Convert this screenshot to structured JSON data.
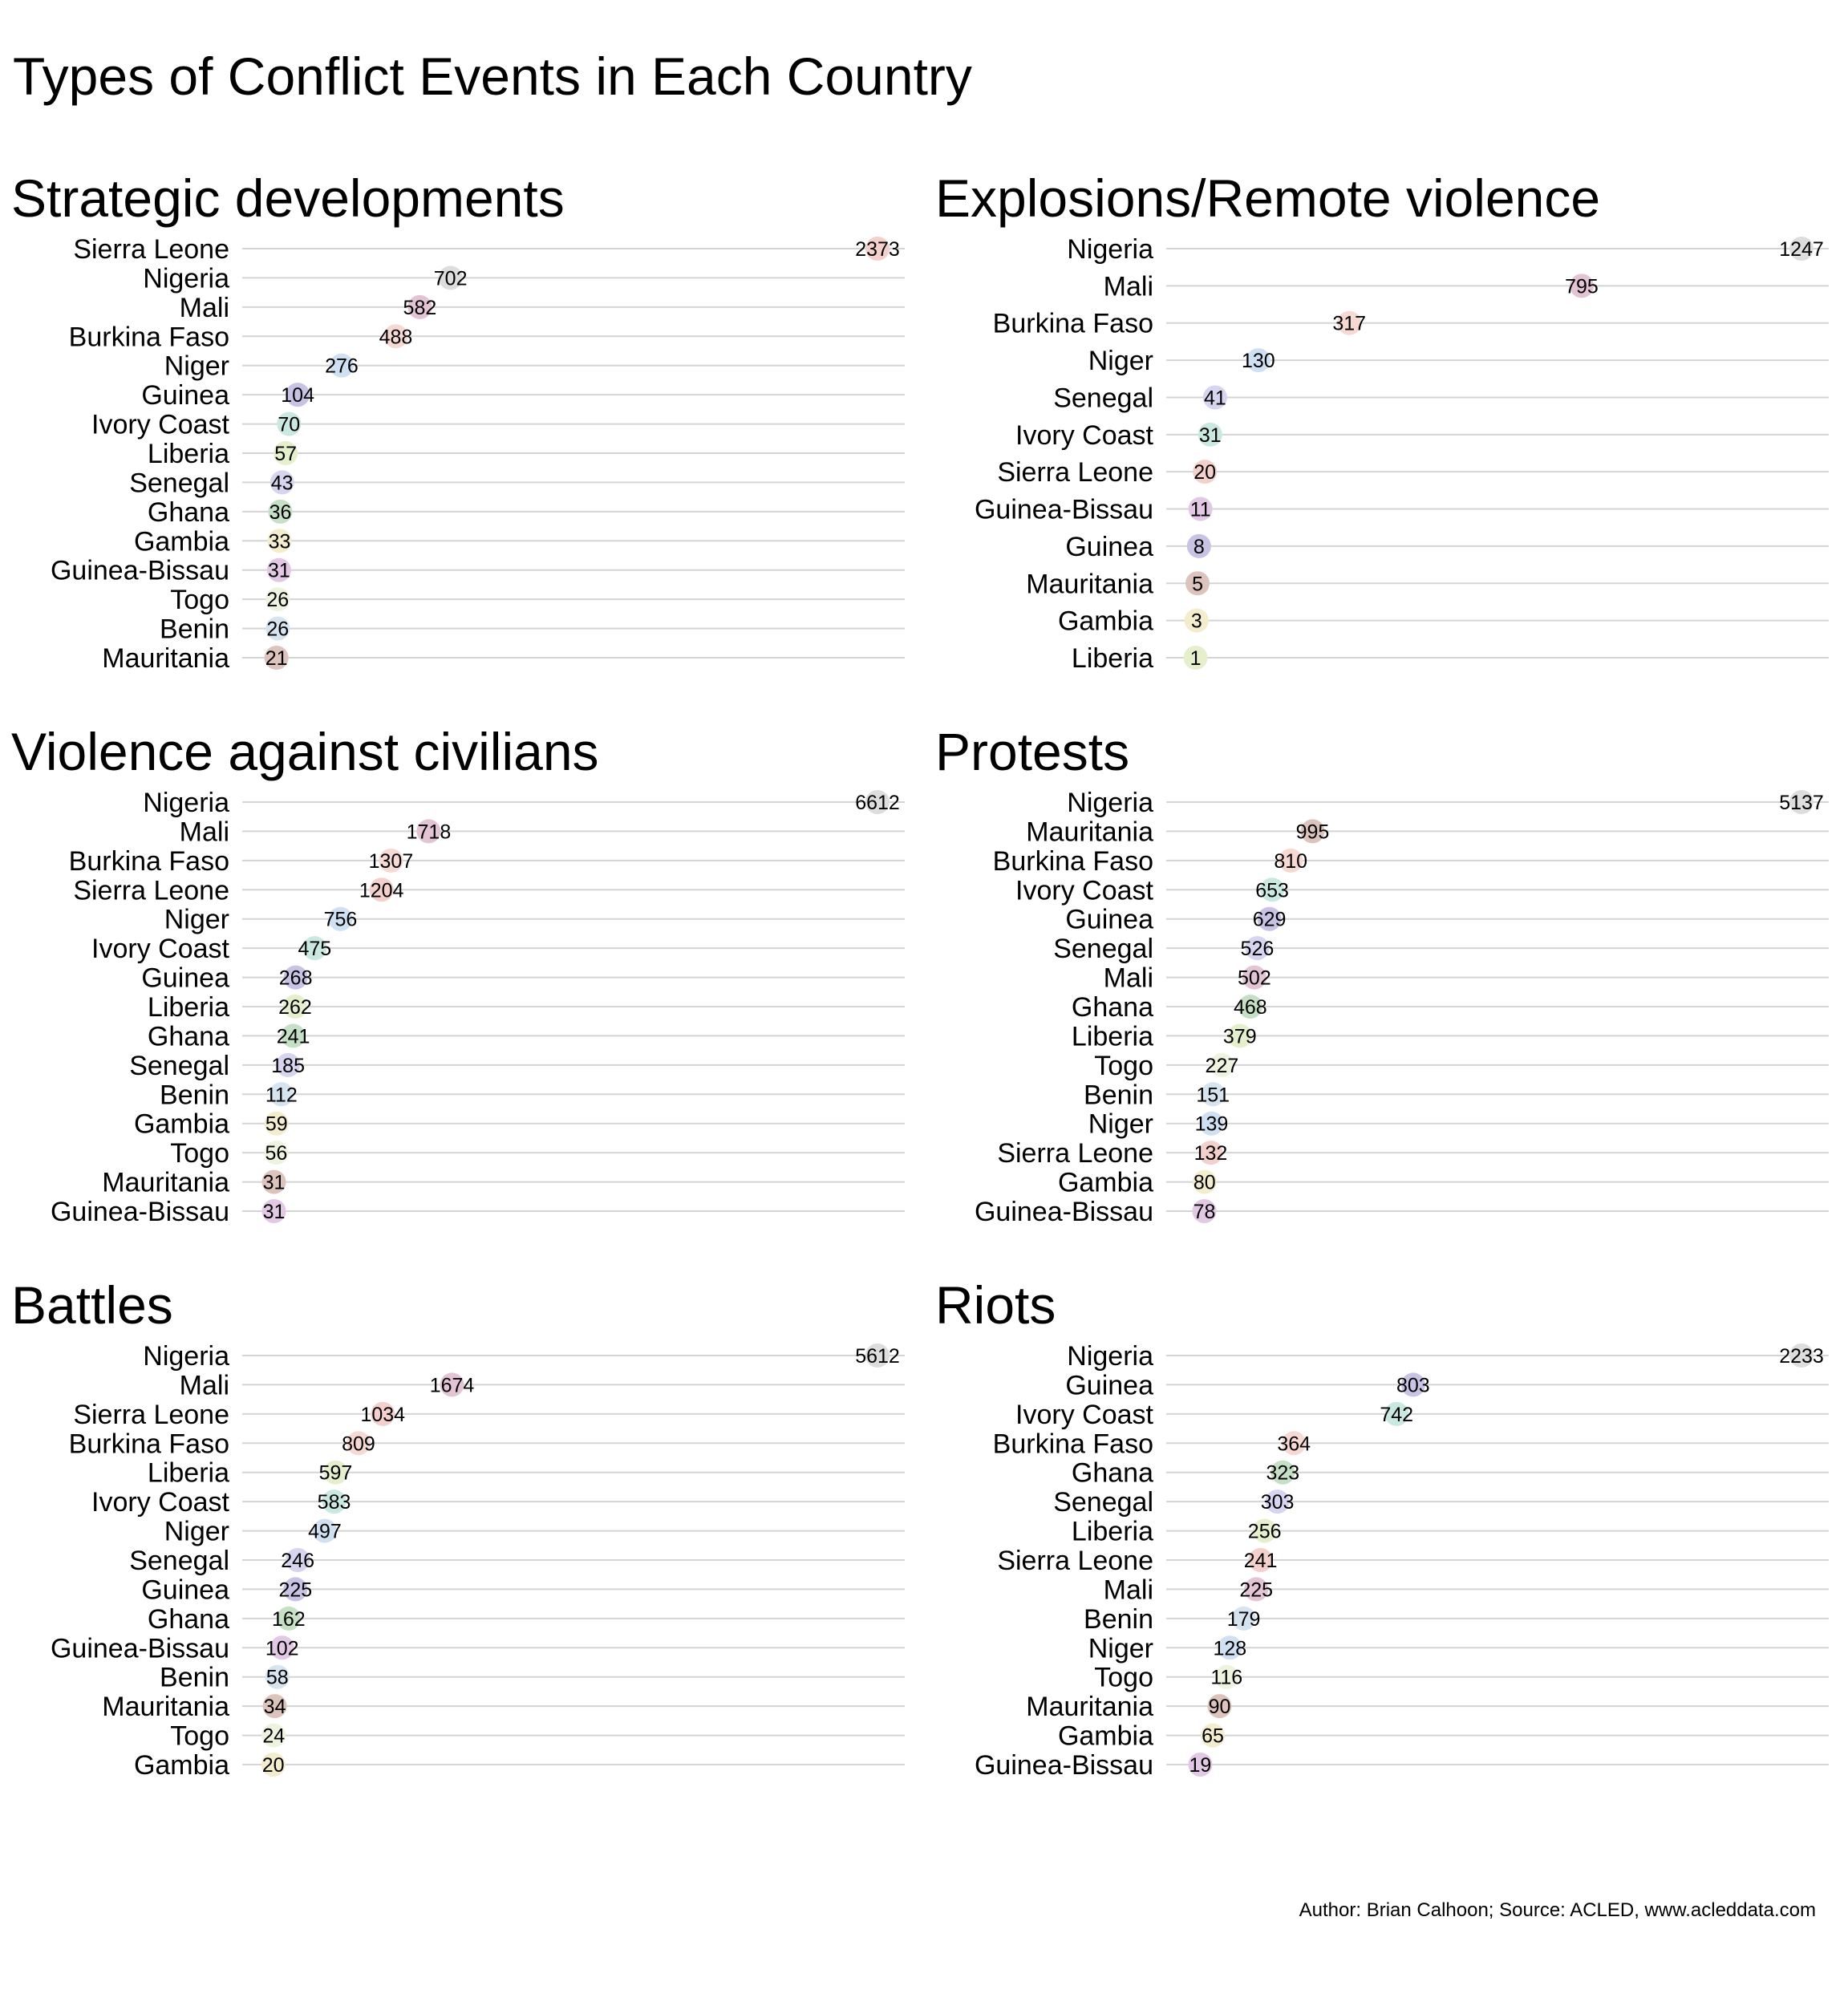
{
  "title": "Types of Conflict Events in Each Country",
  "caption": "Author: Brian Calhoon; Source: ACLED, www.acleddata.com",
  "palette": {
    "Benin": "#d6e4f0",
    "Burkina Faso": "#f7d9d3",
    "Gambia": "#f3eccd",
    "Ghana": "#c5e0c5",
    "Guinea": "#c8c3e4",
    "Guinea-Bissau": "#e3c8e6",
    "Ivory Coast": "#c9e8df",
    "Liberia": "#e6efcc",
    "Mali": "#e2c4d4",
    "Mauritania": "#dcc4bc",
    "Niger": "#cfe0f2",
    "Nigeria": "#dddddd",
    "Senegal": "#d6d4ee",
    "Sierra Leone": "#f4d0cc",
    "Togo": "#eef3e0"
  },
  "chart_data": [
    {
      "type": "dot",
      "title": "Strategic developments",
      "categories": [
        "Sierra Leone",
        "Nigeria",
        "Mali",
        "Burkina Faso",
        "Niger",
        "Guinea",
        "Ivory Coast",
        "Liberia",
        "Senegal",
        "Ghana",
        "Gambia",
        "Guinea-Bissau",
        "Togo",
        "Benin",
        "Mauritania"
      ],
      "values": [
        2373,
        702,
        582,
        488,
        276,
        104,
        70,
        57,
        43,
        36,
        33,
        31,
        26,
        26,
        21
      ]
    },
    {
      "type": "dot",
      "title": "Explosions/Remote violence",
      "categories": [
        "Nigeria",
        "Mali",
        "Burkina Faso",
        "Niger",
        "Senegal",
        "Ivory Coast",
        "Sierra Leone",
        "Guinea-Bissau",
        "Guinea",
        "Mauritania",
        "Gambia",
        "Liberia"
      ],
      "values": [
        1247,
        795,
        317,
        130,
        41,
        31,
        20,
        11,
        8,
        5,
        3,
        1
      ]
    },
    {
      "type": "dot",
      "title": "Violence against civilians",
      "categories": [
        "Nigeria",
        "Mali",
        "Burkina Faso",
        "Sierra Leone",
        "Niger",
        "Ivory Coast",
        "Guinea",
        "Liberia",
        "Ghana",
        "Senegal",
        "Benin",
        "Gambia",
        "Togo",
        "Mauritania",
        "Guinea-Bissau"
      ],
      "values": [
        6612,
        1718,
        1307,
        1204,
        756,
        475,
        268,
        262,
        241,
        185,
        112,
        59,
        56,
        31,
        31
      ]
    },
    {
      "type": "dot",
      "title": "Protests",
      "categories": [
        "Nigeria",
        "Mauritania",
        "Burkina Faso",
        "Ivory Coast",
        "Guinea",
        "Senegal",
        "Mali",
        "Ghana",
        "Liberia",
        "Togo",
        "Benin",
        "Niger",
        "Sierra Leone",
        "Gambia",
        "Guinea-Bissau"
      ],
      "values": [
        5137,
        995,
        810,
        653,
        629,
        526,
        502,
        468,
        379,
        227,
        151,
        139,
        132,
        80,
        78
      ]
    },
    {
      "type": "dot",
      "title": "Battles",
      "categories": [
        "Nigeria",
        "Mali",
        "Sierra Leone",
        "Burkina Faso",
        "Liberia",
        "Ivory Coast",
        "Niger",
        "Senegal",
        "Guinea",
        "Ghana",
        "Guinea-Bissau",
        "Benin",
        "Mauritania",
        "Togo",
        "Gambia"
      ],
      "values": [
        5612,
        1674,
        1034,
        809,
        597,
        583,
        497,
        246,
        225,
        162,
        102,
        58,
        34,
        24,
        20
      ]
    },
    {
      "type": "dot",
      "title": "Riots",
      "categories": [
        "Nigeria",
        "Guinea",
        "Ivory Coast",
        "Burkina Faso",
        "Ghana",
        "Senegal",
        "Liberia",
        "Sierra Leone",
        "Mali",
        "Benin",
        "Niger",
        "Togo",
        "Mauritania",
        "Gambia",
        "Guinea-Bissau"
      ],
      "values": [
        2233,
        803,
        742,
        364,
        323,
        303,
        256,
        241,
        225,
        179,
        128,
        116,
        90,
        65,
        19
      ]
    }
  ]
}
